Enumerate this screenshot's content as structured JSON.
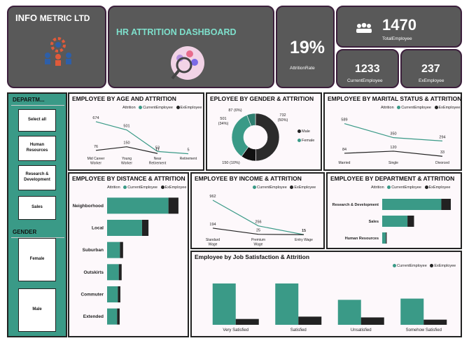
{
  "company": {
    "name_left": "INFO",
    "name_right": "METRIC LTD"
  },
  "header": {
    "title": "HR ATTRITION DASHBOARD"
  },
  "kpis": {
    "attrition_rate": {
      "value": "19%",
      "label": "AttritionRate"
    },
    "total_employee": {
      "value": "1470",
      "label": "TotalEmployee"
    },
    "current_employee": {
      "value": "1233",
      "label": "CurrentEmployee"
    },
    "ex_employee": {
      "value": "237",
      "label": "ExEmployee"
    }
  },
  "slicers": {
    "department": {
      "title": "DEPARTM...",
      "options": [
        "Select all",
        "Human Resources",
        "Research & Development",
        "Sales"
      ]
    },
    "gender": {
      "title": "GENDER",
      "options": [
        "Female",
        "Male"
      ]
    }
  },
  "legend": {
    "attrition": "Attrition",
    "current": "CurrentEmployee",
    "ex": "ExEmployee"
  },
  "colors": {
    "current": "#3a9a87",
    "ex": "#222222",
    "slicer_bg": "#3a9a87",
    "card": "#595959",
    "title_teal": "#7ee0cc"
  },
  "chart_data": [
    {
      "id": "age",
      "type": "line",
      "title": "EMPLOYEE BY AGE AND ATTRITION",
      "categories": [
        "Mid Career Worker",
        "Young Worker",
        "Near Retirement",
        "Retirement"
      ],
      "series": [
        {
          "name": "CurrentEmployee",
          "values": [
            674,
            501,
            53,
            5
          ]
        },
        {
          "name": "ExEmployee",
          "values": [
            76,
            150,
            11,
            null
          ]
        }
      ]
    },
    {
      "id": "gender",
      "type": "pie",
      "title": "EPLOYEE BY GENDER & ATTRITION",
      "labels": [
        "Male",
        "Female"
      ],
      "slices": [
        {
          "label": "732 (50%)",
          "value": 732,
          "color": "#2b2b2b"
        },
        {
          "label": "150 (10%)",
          "value": 150,
          "color": "#111111"
        },
        {
          "label": "501 (34%)",
          "value": 501,
          "color": "#3a9a87"
        },
        {
          "label": "87 (6%)",
          "value": 87,
          "color": "#2f7f70"
        }
      ]
    },
    {
      "id": "marital",
      "type": "line",
      "title": "EMPLOYEE BY MARITAL STATUS & ATTRITION",
      "categories": [
        "Married",
        "Single",
        "Divorced"
      ],
      "series": [
        {
          "name": "CurrentEmployee",
          "values": [
            589,
            350,
            294
          ]
        },
        {
          "name": "ExEmployee",
          "values": [
            84,
            120,
            33
          ]
        }
      ]
    },
    {
      "id": "distance",
      "type": "bar",
      "title": "EMPLOYEE BY DISTANCE & ATTRITION",
      "categories": [
        "Neighborhood",
        "Local",
        "Suburban",
        "Outskirts",
        "Commuter",
        "Extended"
      ],
      "series": [
        {
          "name": "CurrentEmployee",
          "values": [
            430,
            245,
            90,
            82,
            75,
            70
          ]
        },
        {
          "name": "ExEmployee",
          "values": [
            70,
            45,
            22,
            20,
            18,
            18
          ]
        }
      ]
    },
    {
      "id": "income",
      "type": "line",
      "title": "EMPLOYEE BY INCOME & ATTRITION",
      "categories": [
        "Standard Wage",
        "Premium Wage",
        "Entry Wage"
      ],
      "series": [
        {
          "name": "CurrentEmployee",
          "values": [
            962,
            256,
            15
          ]
        },
        {
          "name": "ExEmployee",
          "values": [
            194,
            25,
            15
          ]
        }
      ]
    },
    {
      "id": "department",
      "type": "bar",
      "title": "EMPLOYEE BY DEPARTMENT & ATTRITION",
      "categories": [
        "Research & Development",
        "Sales",
        "Human Resources"
      ],
      "series": [
        {
          "name": "CurrentEmployee",
          "values": [
            828,
            354,
            51
          ]
        },
        {
          "name": "ExEmployee",
          "values": [
            133,
            92,
            12
          ]
        }
      ]
    },
    {
      "id": "satisfaction",
      "type": "bar",
      "title": "Employee by Job Satisfaction & Attrition",
      "categories": [
        "Very Satisfied",
        "Satisfied",
        "Unsatisfied",
        "Somehow Satisfied"
      ],
      "series": [
        {
          "name": "CurrentEmployee",
          "values": [
            369,
            369,
            223,
            234
          ]
        },
        {
          "name": "ExEmployee",
          "values": [
            52,
            73,
            66,
            46
          ]
        }
      ]
    }
  ]
}
